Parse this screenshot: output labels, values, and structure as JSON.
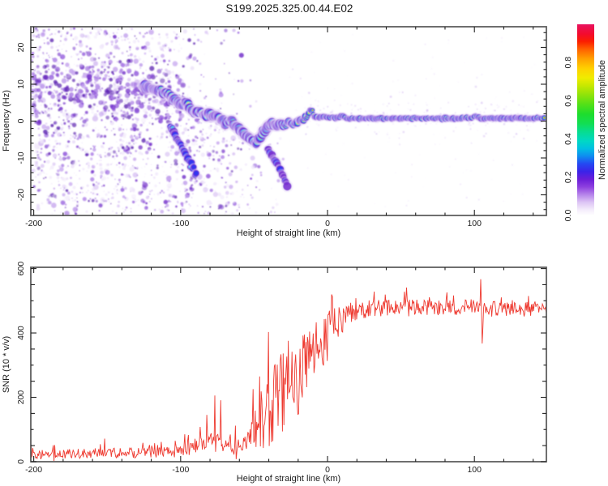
{
  "title": "S199.2025.325.00.44.E02",
  "colors": {
    "frame": "#5f5f5f",
    "tick": "#222222",
    "text": "#1c1c1c",
    "snr_line": "#ee3a30",
    "ring_colors": {
      "halo": "#e6d7f7",
      "purple": "#7228cf",
      "blue": "#2b35f0",
      "cyan": "#00cbe0",
      "green": "#1cd93a",
      "yellow": "#eee600",
      "orange": "#ff9600",
      "red": "#f42011"
    },
    "noise_palette": [
      "#f0e7fb",
      "#ddc9f5",
      "#c5a4ee",
      "#a97ae5",
      "#8d52da",
      "#722fc9",
      "#5b21b0"
    ]
  },
  "chart_data": [
    {
      "type": "heatmap",
      "name": "spectrogram",
      "xlabel": "Height of straight line (km)",
      "ylabel": "Frequency (Hz)",
      "xlim": [
        -202,
        149
      ],
      "ylim": [
        -25.6,
        25.6
      ],
      "xticks": [
        -200,
        -100,
        0,
        100
      ],
      "yticks": [
        -20,
        -10,
        0,
        10,
        20
      ],
      "xminor": 20,
      "yminor": 2,
      "colorbar": {
        "label": "Normalized spectral amplitude",
        "ticks": [
          0.0,
          0.2,
          0.4,
          0.6,
          0.8
        ],
        "lim": [
          0,
          1
        ],
        "stops": [
          [
            0,
            "#ffffff"
          ],
          [
            0.03,
            "#f4ecfb"
          ],
          [
            0.07,
            "#dcc3f4"
          ],
          [
            0.11,
            "#b583ea"
          ],
          [
            0.15,
            "#8d3fdf"
          ],
          [
            0.19,
            "#6a1ed8"
          ],
          [
            0.23,
            "#3b23e8"
          ],
          [
            0.27,
            "#2448f2"
          ],
          [
            0.31,
            "#0f8cf0"
          ],
          [
            0.35,
            "#00c0e2"
          ],
          [
            0.39,
            "#00d8c4"
          ],
          [
            0.44,
            "#07dd8d"
          ],
          [
            0.48,
            "#12de54"
          ],
          [
            0.53,
            "#1edd2d"
          ],
          [
            0.58,
            "#52e018"
          ],
          [
            0.63,
            "#8ee30a"
          ],
          [
            0.68,
            "#c8e800"
          ],
          [
            0.72,
            "#f0ec00"
          ],
          [
            0.77,
            "#ffd000"
          ],
          [
            0.82,
            "#ffa000"
          ],
          [
            0.87,
            "#ff6000"
          ],
          [
            0.91,
            "#fb1e00"
          ],
          [
            0.95,
            "#f30b2e"
          ],
          [
            1,
            "#e8125f"
          ]
        ]
      },
      "trace": [
        [
          -126,
          9.5,
          0.5
        ],
        [
          -120,
          8.8,
          0.55
        ],
        [
          -114,
          8.2,
          0.6
        ],
        [
          -108,
          7.2,
          0.68
        ],
        [
          -103,
          5.5,
          0.72
        ],
        [
          -99,
          4.2,
          0.78
        ],
        [
          -96,
          5.2,
          0.7
        ],
        [
          -93,
          3.2,
          0.8
        ],
        [
          -90,
          2.2,
          0.85
        ],
        [
          -87,
          2.8,
          0.8
        ],
        [
          -84,
          1.4,
          0.82
        ],
        [
          -81,
          2.2,
          0.78
        ],
        [
          -78,
          1.0,
          0.8
        ],
        [
          -75,
          1.6,
          0.82
        ],
        [
          -72,
          0.2,
          0.8
        ],
        [
          -69,
          -0.8,
          0.78
        ],
        [
          -66,
          0.6,
          0.85
        ],
        [
          -63,
          -1.2,
          0.8
        ],
        [
          -60,
          -2.2,
          0.78
        ],
        [
          -57,
          -3.4,
          0.75
        ],
        [
          -54,
          -4.4,
          0.78
        ],
        [
          -51,
          -5.6,
          0.72
        ],
        [
          -48,
          -5.9,
          0.75
        ],
        [
          -46,
          -4.6,
          0.72
        ],
        [
          -44,
          -3.2,
          0.75
        ],
        [
          -42,
          -2.2,
          0.78
        ],
        [
          -40,
          -1.2,
          0.8
        ],
        [
          -38,
          -0.6,
          0.82
        ],
        [
          -35,
          -1.4,
          0.8
        ],
        [
          -32,
          -0.4,
          0.85
        ],
        [
          -29,
          -1.2,
          0.82
        ],
        [
          -26,
          -0.2,
          0.85
        ],
        [
          -23,
          -1.0,
          0.84
        ],
        [
          -20,
          -0.2,
          0.86
        ],
        [
          -17,
          0.4,
          0.85
        ],
        [
          -14,
          1.2,
          0.88
        ],
        [
          -12,
          2.6,
          0.86
        ],
        [
          -11,
          3.3,
          0.88
        ],
        [
          -10,
          2.2,
          0.9
        ],
        [
          -9,
          1.2,
          0.93
        ],
        [
          -6,
          1.0,
          0.94
        ],
        [
          -3,
          1.1,
          0.93
        ],
        [
          0,
          0.9,
          0.95
        ],
        [
          3,
          1.1,
          0.94
        ],
        [
          6,
          0.9,
          0.95
        ],
        [
          9,
          1.3,
          0.94
        ],
        [
          11,
          1.5,
          0.95
        ],
        [
          13,
          0.6,
          0.96
        ],
        [
          20,
          0.7,
          0.99
        ],
        [
          30,
          0.8,
          1.0
        ],
        [
          40,
          0.7,
          1.0
        ],
        [
          60,
          0.8,
          1.0
        ],
        [
          80,
          0.7,
          1.0
        ],
        [
          98,
          0.8,
          1.0
        ],
        [
          101,
          1.4,
          0.97
        ],
        [
          104,
          0.7,
          1.0
        ],
        [
          120,
          0.8,
          1.0
        ],
        [
          148,
          0.8,
          1.0
        ]
      ],
      "branches": [
        {
          "pts": [
            [
              -107,
              -1.5
            ],
            [
              -102,
              -5
            ],
            [
              -97,
              -8.5
            ],
            [
              -93,
              -11.5
            ],
            [
              -89,
              -15.5
            ]
          ],
          "amp": 0.42
        },
        {
          "pts": [
            [
              -41,
              -7.5
            ],
            [
              -36,
              -10.5
            ],
            [
              -31,
              -14
            ],
            [
              -27,
              -17.5
            ]
          ],
          "amp": 0.3
        }
      ],
      "rings": [
        {
          "t": 0,
          "color": "halo",
          "r": 4.6,
          "op": 0.38
        },
        {
          "t": 0,
          "color": "purple",
          "r": 3.3,
          "op": 0.85
        },
        {
          "t": 0.33,
          "color": "blue",
          "r": 2.5,
          "op": 0.92
        },
        {
          "t": 0.47,
          "color": "cyan",
          "r": 1.9,
          "op": 0.95
        },
        {
          "t": 0.62,
          "color": "green",
          "r": 1.45,
          "op": 0.95
        },
        {
          "t": 0.8,
          "color": "yellow",
          "r": 1.05,
          "op": 0.95
        },
        {
          "t": 0.86,
          "color": "orange",
          "r": 0.85,
          "op": 0.95
        },
        {
          "t": 0.92,
          "color": "red",
          "r": 0.7,
          "op": 1
        }
      ],
      "noise": {
        "seed": 1234,
        "n_field": 2400,
        "n_band": 380,
        "n_right": 320,
        "field_x": [
          -202,
          -30
        ],
        "fade_above": -95,
        "fade_below": -55,
        "fade_width": 13,
        "band_center": [
          [
            -202,
            9.7
          ],
          [
            -160,
            9.0
          ],
          [
            -130,
            7.8
          ],
          [
            -100,
            6.0
          ]
        ],
        "band_sigma": 4.5,
        "right_x": [
          -30,
          149
        ]
      }
    },
    {
      "type": "line",
      "name": "snr",
      "xlabel": "Height of straight line (km)",
      "ylabel": "SNR (10 * v/v)",
      "xlim": [
        -202,
        149
      ],
      "ylim": [
        0,
        604
      ],
      "xticks": [
        -200,
        -100,
        0,
        100
      ],
      "yticks": [
        0,
        200,
        400,
        600
      ],
      "xminor": 20,
      "yminor": 50,
      "seed": 77,
      "step_km": 0.5,
      "profile": [
        [
          -201,
          26,
          16,
          40
        ],
        [
          -160,
          26,
          16,
          40
        ],
        [
          -130,
          27,
          16,
          40
        ],
        [
          -112,
          28,
          16,
          40
        ],
        [
          -100,
          34,
          20,
          50
        ],
        [
          -92,
          48,
          26,
          90
        ],
        [
          -84,
          58,
          30,
          120
        ],
        [
          -76,
          60,
          30,
          120
        ],
        [
          -68,
          56,
          28,
          90
        ],
        [
          -61,
          46,
          22,
          60
        ],
        [
          -55,
          55,
          35,
          120
        ],
        [
          -50,
          90,
          70,
          220
        ],
        [
          -45,
          140,
          110,
          270
        ],
        [
          -40,
          170,
          130,
          250
        ],
        [
          -35,
          190,
          140,
          230
        ],
        [
          -30,
          210,
          140,
          210
        ],
        [
          -25,
          235,
          130,
          190
        ],
        [
          -20,
          265,
          120,
          170
        ],
        [
          -15,
          300,
          115,
          150
        ],
        [
          -10,
          330,
          105,
          140
        ],
        [
          -5,
          360,
          95,
          120
        ],
        [
          0,
          395,
          80,
          100
        ],
        [
          4,
          420,
          65,
          80
        ],
        [
          8,
          438,
          52,
          60
        ],
        [
          12,
          452,
          40,
          45
        ],
        [
          16,
          462,
          33,
          35
        ],
        [
          22,
          472,
          28,
          28
        ],
        [
          40,
          478,
          26,
          45
        ],
        [
          70,
          480,
          26,
          30
        ],
        [
          100,
          480,
          26,
          30
        ],
        [
          103.8,
          478,
          25,
          30
        ],
        [
          104.4,
          595,
          6,
          0
        ],
        [
          105.2,
          362,
          8,
          0
        ],
        [
          106.2,
          472,
          25,
          30
        ],
        [
          120,
          478,
          26,
          26
        ],
        [
          148.5,
          477,
          26,
          26
        ]
      ]
    }
  ]
}
